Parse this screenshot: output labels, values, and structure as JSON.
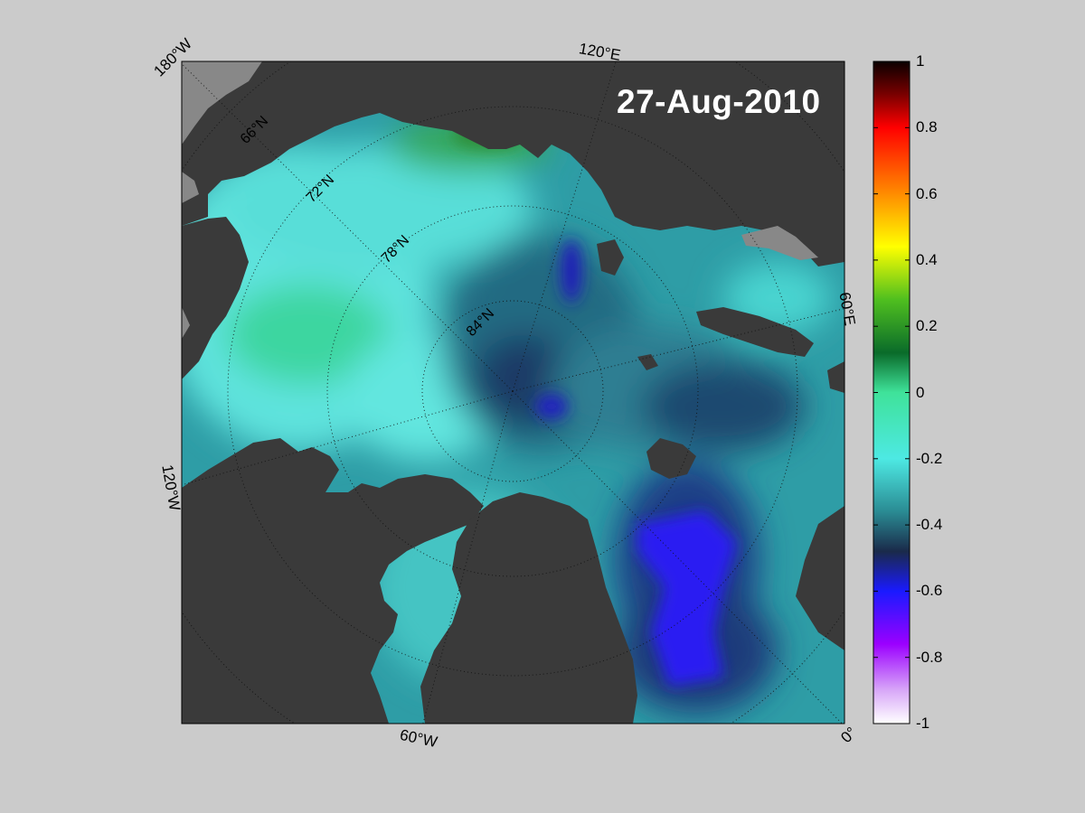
{
  "date_label": "27-Aug-2010",
  "longitude_labels": {
    "w180": "180°W",
    "e120": "120°E",
    "e60": "60°E",
    "w120": "120°W",
    "w60": "60°W",
    "zero": "0°"
  },
  "latitude_labels": [
    "66°N",
    "72°N",
    "78°N",
    "84°N"
  ],
  "colorbar": {
    "min": -1,
    "max": 1,
    "tick_labels": [
      "1",
      "0.8",
      "0.6",
      "0.4",
      "0.2",
      "0",
      "-0.2",
      "-0.4",
      "-0.6",
      "-0.8",
      "-1"
    ]
  },
  "colors": {
    "background": "#cbcbcb",
    "land": "#3a3a3a",
    "land_outside_domain": "#888888",
    "ocean_base": "#2a9fa6"
  }
}
